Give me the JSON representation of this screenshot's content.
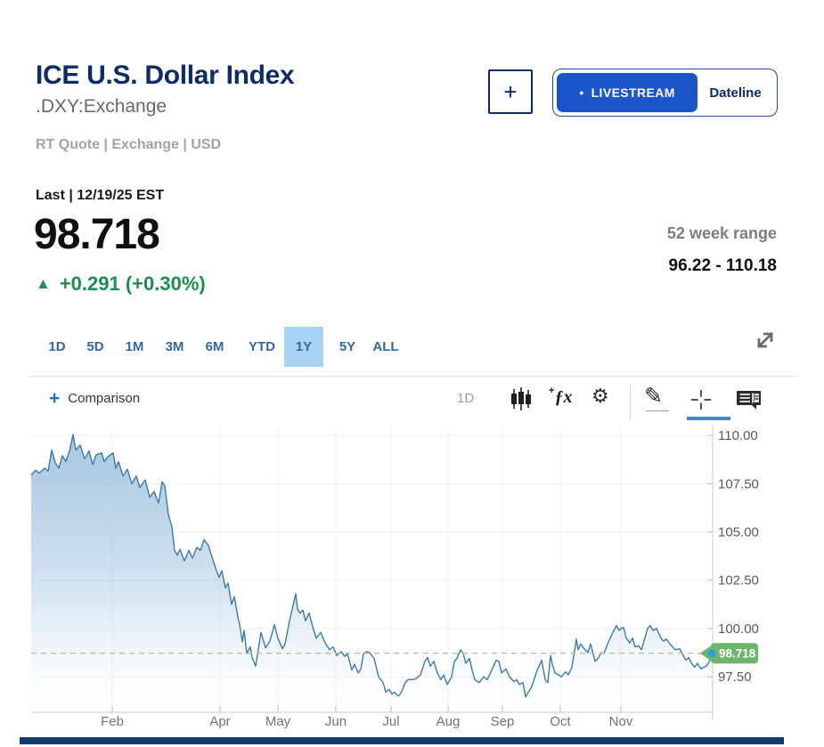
{
  "header": {
    "title": "ICE U.S. Dollar Index",
    "symbol": ".DXY:Exchange",
    "meta": "RT Quote | Exchange | USD",
    "add_button_label": "+",
    "livestream": {
      "dot": "●",
      "label": "LIVESTREAM"
    },
    "dateline_label": "Dateline"
  },
  "quote": {
    "last_label": "Last | 12/19/25 EST",
    "price": "98.718",
    "change_arrow": "▲",
    "change_text": "+0.291 (+0.30%)",
    "change_color": "#1f8b4e",
    "week_range_label": "52 week range",
    "week_range_value": "96.22 - 110.18"
  },
  "tabs": {
    "items": [
      "1D",
      "5D",
      "1M",
      "3M",
      "6M",
      "YTD",
      "1Y",
      "5Y",
      "ALL"
    ],
    "selected": "1Y"
  },
  "chart_toolbar": {
    "plus": "+",
    "comparison_label": "Comparison",
    "interval_label": "1D",
    "fx_plus": "+",
    "fx_label": "ƒx",
    "gear_glyph": "⚙",
    "pencil_glyph": "✎"
  },
  "chart_data": {
    "type": "area",
    "symbol": ".DXY",
    "period": "1Y",
    "last_value": 98.718,
    "last_label": "98.718",
    "y_axis": {
      "tick_labels": [
        "110.00",
        "107.50",
        "105.00",
        "102.50",
        "100.00",
        "97.50"
      ],
      "tick_values": [
        110,
        107.5,
        105,
        102.5,
        100,
        97.5
      ],
      "top_value": 110.42,
      "bottom_value": 95.66
    },
    "x_axis": {
      "ticks": [
        {
          "label": "Feb",
          "px": 126
        },
        {
          "label": "Apr",
          "px": 247
        },
        {
          "label": "May",
          "px": 312
        },
        {
          "label": "Jun",
          "px": 377
        },
        {
          "label": "Jul",
          "px": 439
        },
        {
          "label": "Aug",
          "px": 503
        },
        {
          "label": "Sep",
          "px": 564
        },
        {
          "label": "Oct",
          "px": 629
        },
        {
          "label": "Nov",
          "px": 697
        }
      ]
    },
    "colors": {
      "line": "#3d79a8",
      "fill_top": "#9bbfdc",
      "badge": "#6cb56a",
      "dot": "#2f9ed8",
      "dashed": "#b4c3a4",
      "grid": "#eff1f3",
      "axis": "#c7cacd",
      "tick": "#b9bcbf",
      "y_label": "#565a5f",
      "x_label": "#6e7378"
    },
    "series": [
      {
        "name": ".DXY",
        "points": [
          [
            35,
            107.95
          ],
          [
            40,
            108.2
          ],
          [
            44,
            108.05
          ],
          [
            50,
            108.3
          ],
          [
            54,
            108.15
          ],
          [
            58,
            109.25
          ],
          [
            62,
            108.6
          ],
          [
            66,
            108.3
          ],
          [
            70,
            108.95
          ],
          [
            74,
            108.65
          ],
          [
            78,
            109.2
          ],
          [
            82,
            110.05
          ],
          [
            85,
            109.25
          ],
          [
            90,
            109.5
          ],
          [
            95,
            108.8
          ],
          [
            100,
            109.2
          ],
          [
            104,
            108.5
          ],
          [
            108,
            109.0
          ],
          [
            114,
            109.1
          ],
          [
            117,
            108.65
          ],
          [
            121,
            108.9
          ],
          [
            127,
            109.1
          ],
          [
            130,
            108.3
          ],
          [
            133,
            108.65
          ],
          [
            138,
            107.9
          ],
          [
            143,
            108.25
          ],
          [
            148,
            107.5
          ],
          [
            153,
            107.9
          ],
          [
            157,
            107.3
          ],
          [
            163,
            107.7
          ],
          [
            168,
            106.8
          ],
          [
            173,
            107.1
          ],
          [
            178,
            106.5
          ],
          [
            182,
            107.6
          ],
          [
            185,
            107.4
          ],
          [
            189,
            105.9
          ],
          [
            193,
            105.25
          ],
          [
            196,
            104.05
          ],
          [
            199,
            103.8
          ],
          [
            202,
            104.1
          ],
          [
            207,
            103.5
          ],
          [
            212,
            104.05
          ],
          [
            216,
            103.65
          ],
          [
            221,
            104.2
          ],
          [
            225,
            104.05
          ],
          [
            229,
            104.6
          ],
          [
            234,
            104.3
          ],
          [
            238,
            103.7
          ],
          [
            243,
            103.0
          ],
          [
            246,
            102.65
          ],
          [
            249,
            103.0
          ],
          [
            253,
            102.1
          ],
          [
            256,
            102.35
          ],
          [
            260,
            101.25
          ],
          [
            263,
            101.65
          ],
          [
            267,
            100.6
          ],
          [
            269,
            100.2
          ],
          [
            272,
            99.3
          ],
          [
            274,
            99.9
          ],
          [
            277,
            98.7
          ],
          [
            281,
            99.05
          ],
          [
            283,
            98.5
          ],
          [
            287,
            98.05
          ],
          [
            293,
            99.8
          ],
          [
            298,
            99.0
          ],
          [
            303,
            99.35
          ],
          [
            308,
            100.2
          ],
          [
            312,
            99.5
          ],
          [
            317,
            98.95
          ],
          [
            320,
            99.2
          ],
          [
            325,
            100.4
          ],
          [
            332,
            101.8
          ],
          [
            334,
            101.0
          ],
          [
            337,
            100.8
          ],
          [
            340,
            100.95
          ],
          [
            343,
            100.4
          ],
          [
            347,
            100.8
          ],
          [
            350,
            100.25
          ],
          [
            355,
            99.5
          ],
          [
            360,
            99.8
          ],
          [
            365,
            99.25
          ],
          [
            370,
            98.9
          ],
          [
            374,
            99.05
          ],
          [
            378,
            98.6
          ],
          [
            383,
            98.8
          ],
          [
            387,
            98.55
          ],
          [
            390,
            98.7
          ],
          [
            395,
            97.85
          ],
          [
            398,
            98.15
          ],
          [
            402,
            97.7
          ],
          [
            405,
            97.9
          ],
          [
            408,
            98.7
          ],
          [
            412,
            98.8
          ],
          [
            415,
            98.75
          ],
          [
            420,
            98.45
          ],
          [
            425,
            97.5
          ],
          [
            430,
            97.2
          ],
          [
            433,
            96.7
          ],
          [
            437,
            96.85
          ],
          [
            440,
            96.6
          ],
          [
            443,
            96.7
          ],
          [
            447,
            96.5
          ],
          [
            450,
            96.65
          ],
          [
            455,
            97.2
          ],
          [
            458,
            97.35
          ],
          [
            463,
            97.35
          ],
          [
            467,
            97.4
          ],
          [
            472,
            97.6
          ],
          [
            477,
            98.3
          ],
          [
            480,
            98.5
          ],
          [
            483,
            98.05
          ],
          [
            487,
            98.3
          ],
          [
            491,
            97.7
          ],
          [
            495,
            97.35
          ],
          [
            498,
            97.6
          ],
          [
            502,
            97.1
          ],
          [
            507,
            97.5
          ],
          [
            510,
            98.3
          ],
          [
            513,
            98.45
          ],
          [
            517,
            98.9
          ],
          [
            520,
            98.7
          ],
          [
            523,
            98.2
          ],
          [
            527,
            98.45
          ],
          [
            530,
            97.85
          ],
          [
            533,
            97.35
          ],
          [
            538,
            97.2
          ],
          [
            543,
            97.5
          ],
          [
            547,
            97.35
          ],
          [
            552,
            97.85
          ],
          [
            557,
            98.35
          ],
          [
            560,
            98.3
          ],
          [
            563,
            97.7
          ],
          [
            568,
            97.9
          ],
          [
            572,
            97.5
          ],
          [
            577,
            97.25
          ],
          [
            580,
            97.35
          ],
          [
            583,
            97.1
          ],
          [
            587,
            97.2
          ],
          [
            590,
            96.45
          ],
          [
            593,
            96.7
          ],
          [
            597,
            97.0
          ],
          [
            603,
            97.85
          ],
          [
            608,
            98.35
          ],
          [
            612,
            97.35
          ],
          [
            615,
            97.2
          ],
          [
            618,
            98.6
          ],
          [
            620,
            98.15
          ],
          [
            623,
            97.7
          ],
          [
            627,
            97.6
          ],
          [
            630,
            97.5
          ],
          [
            635,
            97.75
          ],
          [
            638,
            97.6
          ],
          [
            642,
            98.0
          ],
          [
            647,
            99.45
          ],
          [
            649,
            98.9
          ],
          [
            652,
            99.2
          ],
          [
            655,
            99.0
          ],
          [
            660,
            98.75
          ],
          [
            663,
            99.2
          ],
          [
            668,
            98.3
          ],
          [
            672,
            98.5
          ],
          [
            675,
            98.75
          ],
          [
            678,
            98.7
          ],
          [
            682,
            99.2
          ],
          [
            685,
            99.5
          ],
          [
            688,
            99.8
          ],
          [
            692,
            100.15
          ],
          [
            695,
            99.9
          ],
          [
            697,
            100.0
          ],
          [
            700,
            100.05
          ],
          [
            703,
            99.5
          ],
          [
            707,
            99.25
          ],
          [
            710,
            99.5
          ],
          [
            713,
            99.05
          ],
          [
            717,
            99.1
          ],
          [
            720,
            98.9
          ],
          [
            723,
            99.35
          ],
          [
            727,
            100.0
          ],
          [
            730,
            100.15
          ],
          [
            733,
            99.9
          ],
          [
            737,
            100.0
          ],
          [
            742,
            99.5
          ],
          [
            745,
            99.35
          ],
          [
            748,
            99.45
          ],
          [
            752,
            99.2
          ],
          [
            755,
            99.05
          ],
          [
            758,
            98.9
          ],
          [
            763,
            98.95
          ],
          [
            767,
            98.6
          ],
          [
            770,
            98.35
          ],
          [
            773,
            98.5
          ],
          [
            777,
            98.15
          ],
          [
            780,
            98.0
          ],
          [
            783,
            98.2
          ],
          [
            787,
            97.9
          ],
          [
            790,
            98.0
          ],
          [
            793,
            98.05
          ],
          [
            797,
            98.35
          ],
          [
            800,
            98.718
          ]
        ]
      }
    ]
  },
  "bottom_bar_color": "#143a6d"
}
